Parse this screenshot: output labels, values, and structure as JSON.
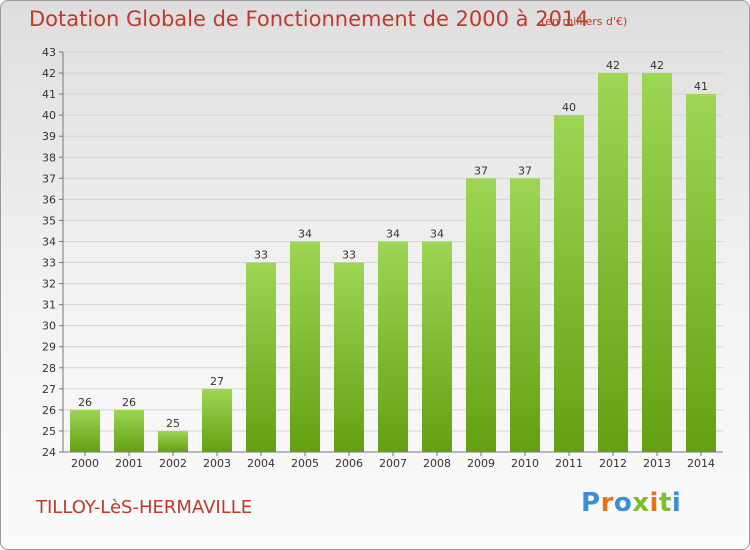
{
  "header": {
    "title": "Dotation Globale de Fonctionnement de 2000 à 2014",
    "unit_note": "(en milliers d'€)"
  },
  "footer": {
    "commune": "TILLOY-LèS-HERMAVILLE",
    "brand": "Proxiti",
    "brand_letters": [
      "P",
      "r",
      "o",
      "x",
      "i",
      "t",
      "i"
    ],
    "brand_colors": [
      "#3a8fd6",
      "#e8731c",
      "#3a8fd6",
      "#7bbf2a",
      "#e8731c",
      "#7bbf2a",
      "#3a8fd6"
    ]
  },
  "colors": {
    "bar_light": "#9ed655",
    "bar_dark": "#64a012",
    "text_red": "#c0392b",
    "grid": "#d4d4d4"
  },
  "chart_data": {
    "type": "bar",
    "categories": [
      "2000",
      "2001",
      "2002",
      "2003",
      "2004",
      "2005",
      "2006",
      "2007",
      "2008",
      "2009",
      "2010",
      "2011",
      "2012",
      "2013",
      "2014"
    ],
    "values": [
      26,
      26,
      25,
      27,
      33,
      34,
      33,
      34,
      34,
      37,
      37,
      40,
      42,
      42,
      41
    ],
    "data_labels": [
      "26",
      "26",
      "25",
      "27",
      "33",
      "34",
      "33",
      "34",
      "34",
      "37",
      "37",
      "40",
      "42",
      "42",
      "41"
    ],
    "y_ticks": [
      "24",
      "25",
      "26",
      "27",
      "28",
      "29",
      "30",
      "31",
      "32",
      "33",
      "34",
      "35",
      "36",
      "37",
      "38",
      "39",
      "40",
      "41",
      "42",
      "43"
    ],
    "ylim": [
      24,
      43
    ],
    "grid": true,
    "xlabel": "",
    "ylabel": ""
  }
}
